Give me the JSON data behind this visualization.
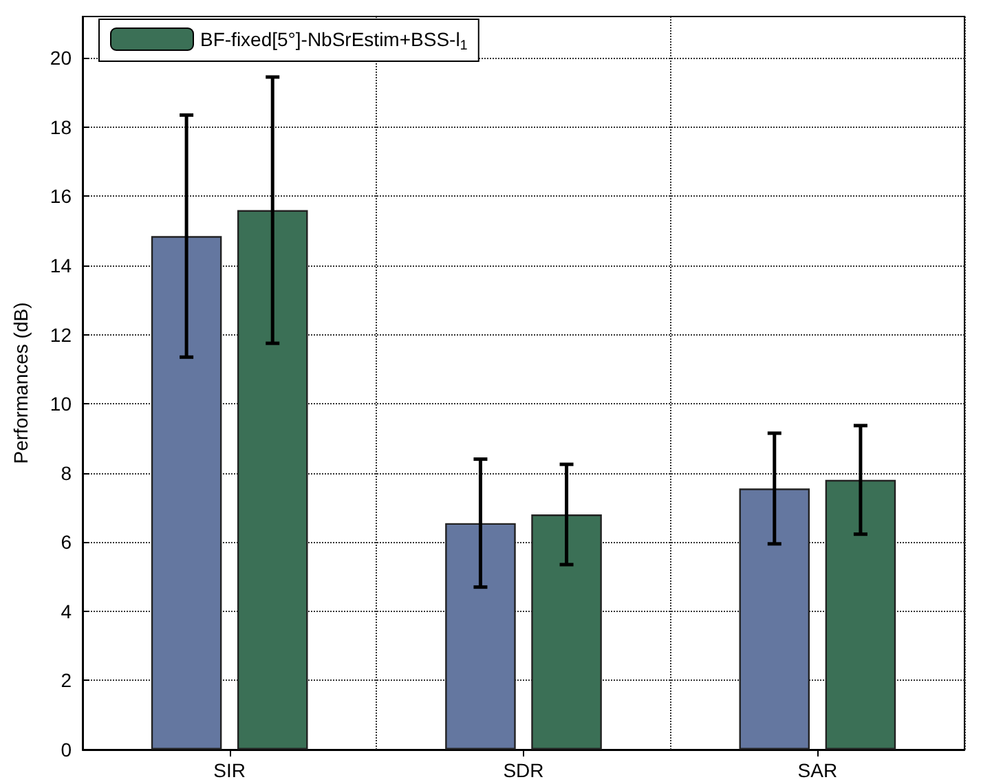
{
  "chart_data": {
    "type": "bar",
    "ylabel": "Performances (dB)",
    "categories": [
      "SIR",
      "SDR",
      "SAR"
    ],
    "series": [
      {
        "color": "#6477a0",
        "values": [
          14.85,
          6.55,
          7.55
        ],
        "errors": [
          3.5,
          1.85,
          1.6
        ]
      },
      {
        "name": "BF-fixed[5°]-NbSrEstim+BSS-l$_{1}$",
        "color": "#3b7056",
        "values": [
          15.6,
          6.8,
          7.8
        ],
        "errors": [
          3.85,
          1.45,
          1.57
        ]
      }
    ],
    "ylim": [
      0,
      21.2
    ],
    "yticks": [
      0,
      2,
      4,
      6,
      8,
      10,
      12,
      14,
      16,
      18,
      20
    ],
    "grid": true,
    "legend": "top left"
  }
}
